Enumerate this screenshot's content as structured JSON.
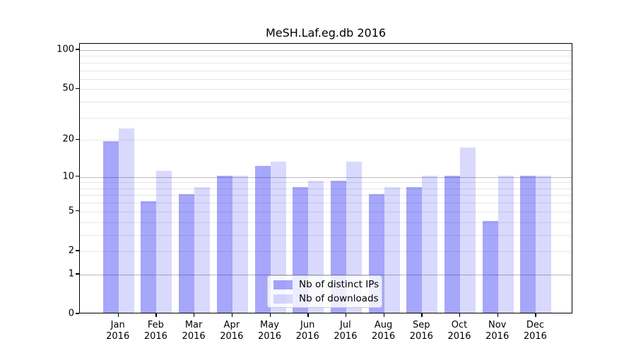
{
  "title": "MeSH.Laf.eg.db 2016",
  "chart_data": {
    "type": "bar",
    "title": "MeSH.Laf.eg.db 2016",
    "xlabel": "",
    "ylabel": "",
    "y_scale": "log1p",
    "ylim": [
      0,
      112
    ],
    "grid": true,
    "legend_position": "lower center",
    "categories": [
      "Jan",
      "Feb",
      "Mar",
      "Apr",
      "May",
      "Jun",
      "Jul",
      "Aug",
      "Sep",
      "Oct",
      "Nov",
      "Dec"
    ],
    "x_year_label": "2016",
    "yticks": [
      100,
      50,
      20,
      10,
      5,
      2,
      1,
      0
    ],
    "decade_gridlines": [
      1,
      10,
      100
    ],
    "minor_gridlines": [
      2,
      3,
      4,
      5,
      6,
      7,
      8,
      9,
      20,
      30,
      40,
      50,
      60,
      70,
      80,
      90
    ],
    "series": [
      {
        "name": "Nb of distinct IPs",
        "color": "rgba(0,0,240,0.35)",
        "color_hex_on_white": "#a6a6f9",
        "values": [
          19,
          6,
          7,
          10,
          12,
          8,
          9,
          7,
          8,
          10,
          4,
          10
        ]
      },
      {
        "name": "Nb of downloads",
        "color": "rgba(0,0,240,0.15)",
        "color_hex_on_white": "#d9d9f8",
        "values": [
          24,
          11,
          8,
          10,
          13,
          9,
          13,
          8,
          10,
          17,
          10,
          10
        ]
      }
    ]
  }
}
